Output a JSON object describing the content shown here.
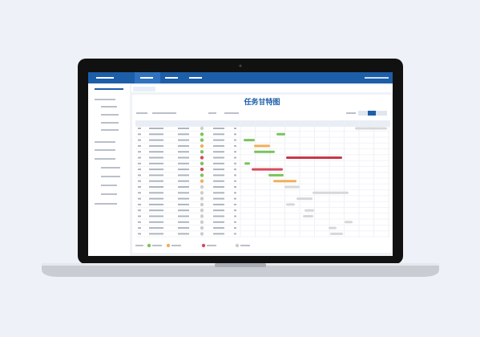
{
  "panel": {
    "title": "任务甘特图"
  }
}
